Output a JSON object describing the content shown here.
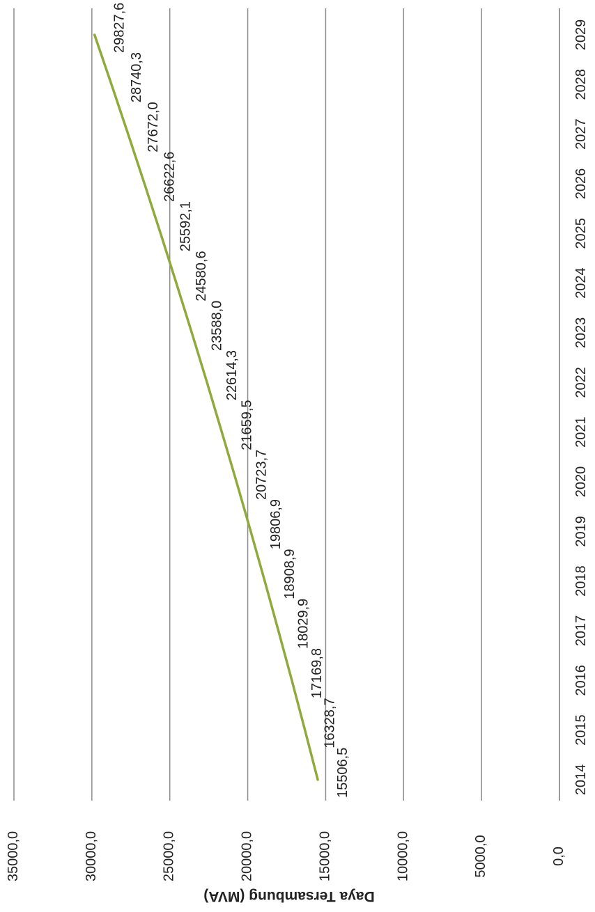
{
  "chart_data": {
    "type": "line",
    "orientation": "rotated-90-cw",
    "title": "",
    "xlabel": "",
    "ylabel": "Daya Tersambung (MVA)",
    "categories": [
      "2014",
      "2015",
      "2016",
      "2017",
      "2018",
      "2019",
      "2020",
      "2021",
      "2022",
      "2023",
      "2024",
      "2025",
      "2026",
      "2027",
      "2028",
      "2029"
    ],
    "series": [
      {
        "values": [
          15506.5,
          16328.7,
          17169.8,
          18029.9,
          18908.9,
          19806.9,
          20723.7,
          21659.5,
          22614.3,
          23588.0,
          24580.6,
          25592.1,
          26622.6,
          27672.0,
          28740.3,
          29827.6
        ],
        "labels": [
          "15506,5",
          "16328,7",
          "17169,8",
          "18029,9",
          "18908,9",
          "19806,9",
          "20723,7",
          "21659,5",
          "22614,3",
          "23588,0",
          "24580,6",
          "25592,1",
          "26622,6",
          "27672,0",
          "28740,3",
          "29827,6"
        ],
        "color": "#8faa3c"
      }
    ],
    "yticks": [
      0,
      5000,
      10000,
      15000,
      20000,
      25000,
      30000,
      35000
    ],
    "ytick_labels": [
      "0,0",
      "5000,0",
      "10000,0",
      "15000,0",
      "20000,0",
      "25000,0",
      "30000,0",
      "35000,0"
    ],
    "ylim": [
      0,
      35000
    ],
    "grid": true,
    "legend": "none"
  }
}
